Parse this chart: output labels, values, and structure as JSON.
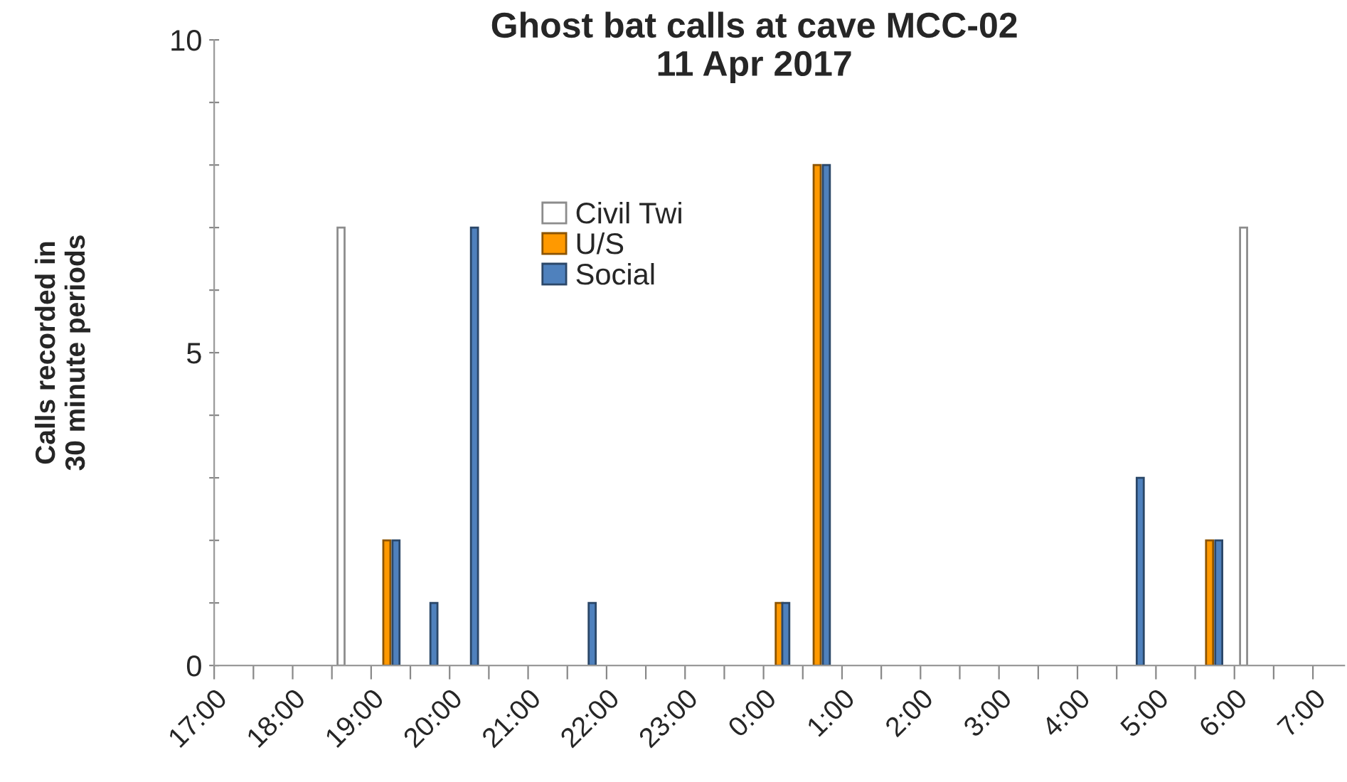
{
  "chart_data": {
    "type": "bar",
    "title": "Ghost bat calls at cave MCC-02\n11 Apr 2017",
    "ylabel": "Calls recorded in\n30 minute periods",
    "series": [
      {
        "name": "Civil Twi",
        "color": "#ffffff",
        "x": [
          "2017-04-11T18:37",
          "2017-04-12T06:07"
        ],
        "values": [
          7,
          7
        ]
      },
      {
        "name": "U/S",
        "color": "#ff9900",
        "x": [
          "2017-04-11T19:12",
          "2017-04-12T00:12",
          "2017-04-12T00:41",
          "2017-04-12T05:41"
        ],
        "values": [
          2,
          1,
          8,
          2
        ]
      },
      {
        "name": "Social",
        "color": "#4f81bd",
        "x": [
          "2017-04-11T19:19",
          "2017-04-11T19:48",
          "2017-04-11T20:19",
          "2017-04-11T21:49",
          "2017-04-12T00:17",
          "2017-04-12T00:48",
          "2017-04-12T04:48",
          "2017-04-12T05:48"
        ],
        "values": [
          2,
          1,
          7,
          1,
          1,
          8,
          3,
          2
        ]
      }
    ],
    "xlim": [
      "2017-04-11T17:00",
      "2017-04-12T07:24"
    ],
    "xticks": [
      {
        "value": "2017-04-11T17:00",
        "label": "17:00"
      },
      {
        "value": "2017-04-11T17:30",
        "label": null
      },
      {
        "value": "2017-04-11T18:00",
        "label": "18:00"
      },
      {
        "value": "2017-04-11T18:30",
        "label": null
      },
      {
        "value": "2017-04-11T19:00",
        "label": "19:00"
      },
      {
        "value": "2017-04-11T19:30",
        "label": null
      },
      {
        "value": "2017-04-11T20:00",
        "label": "20:00"
      },
      {
        "value": "2017-04-11T20:30",
        "label": null
      },
      {
        "value": "2017-04-11T21:00",
        "label": "21:00"
      },
      {
        "value": "2017-04-11T21:30",
        "label": null
      },
      {
        "value": "2017-04-11T22:00",
        "label": "22:00"
      },
      {
        "value": "2017-04-11T22:30",
        "label": null
      },
      {
        "value": "2017-04-11T23:00",
        "label": "23:00"
      },
      {
        "value": "2017-04-11T23:30",
        "label": null
      },
      {
        "value": "2017-04-12T00:00",
        "label": "0:00"
      },
      {
        "value": "2017-04-12T00:30",
        "label": null
      },
      {
        "value": "2017-04-12T01:00",
        "label": "1:00"
      },
      {
        "value": "2017-04-12T01:30",
        "label": null
      },
      {
        "value": "2017-04-12T02:00",
        "label": "2:00"
      },
      {
        "value": "2017-04-12T02:30",
        "label": null
      },
      {
        "value": "2017-04-12T03:00",
        "label": "3:00"
      },
      {
        "value": "2017-04-12T03:30",
        "label": null
      },
      {
        "value": "2017-04-12T04:00",
        "label": "4:00"
      },
      {
        "value": "2017-04-12T04:30",
        "label": null
      },
      {
        "value": "2017-04-12T05:00",
        "label": "5:00"
      },
      {
        "value": "2017-04-12T05:30",
        "label": null
      },
      {
        "value": "2017-04-12T06:00",
        "label": "6:00"
      },
      {
        "value": "2017-04-12T06:30",
        "label": null
      },
      {
        "value": "2017-04-12T07:00",
        "label": "7:00"
      }
    ],
    "ylim": [
      0,
      10
    ],
    "yticks": [
      0,
      {
        "value": 1,
        "label": null
      },
      {
        "value": 2,
        "label": null
      },
      {
        "value": 3,
        "label": null
      },
      {
        "value": 4,
        "label": null
      },
      5,
      {
        "value": 6,
        "label": null
      },
      {
        "value": 7,
        "label": null
      },
      {
        "value": 8,
        "label": null
      },
      {
        "value": 9,
        "label": null
      },
      10
    ],
    "grid": false,
    "legend": "top"
  }
}
